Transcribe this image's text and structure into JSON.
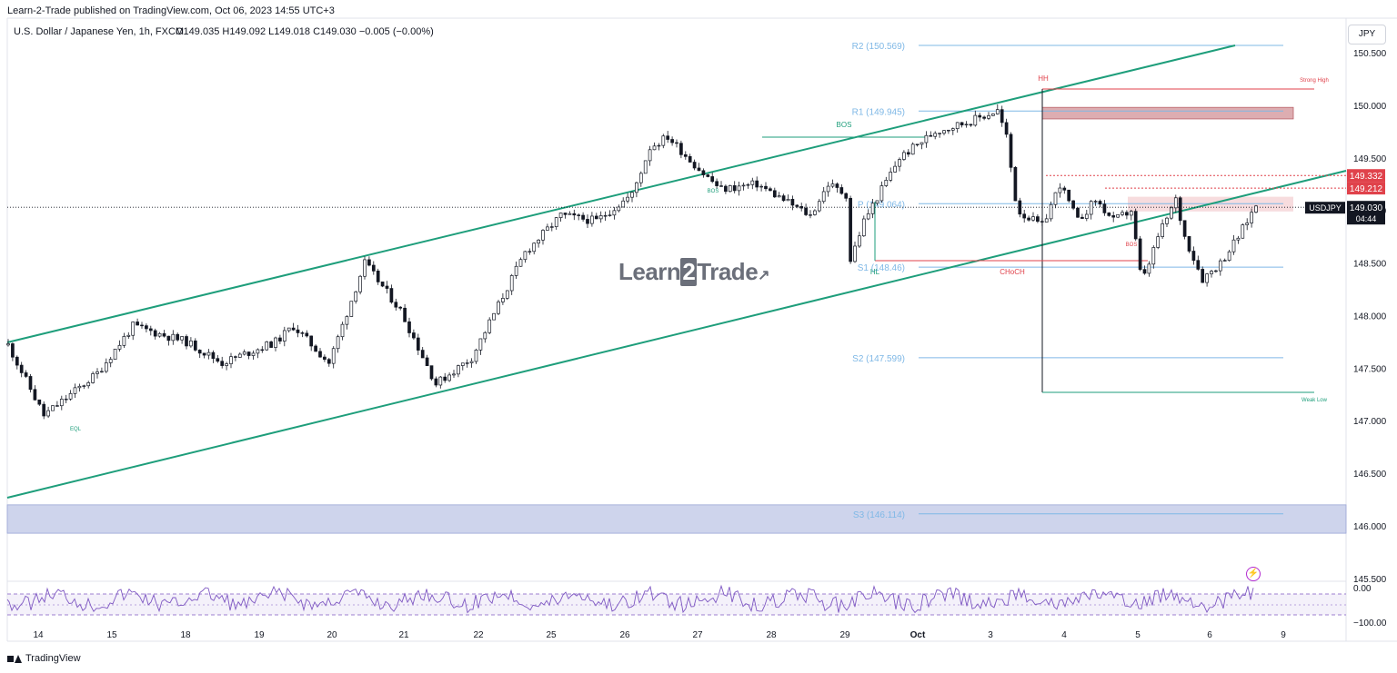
{
  "header": {
    "published": "Learn-2-Trade published on TradingView.com, Oct 06, 2023 14:55 UTC+3",
    "symbol": "U.S. Dollar / Japanese Yen, 1h, FXCM",
    "ohlc": "O149.035  H149.092  L149.018  C149.030  −0.005 (−0.00%)",
    "currency_button": "JPY"
  },
  "watermark": {
    "pre": "Learn",
    "two": "2",
    "post": "Trade"
  },
  "footer": {
    "brand": "TradingView"
  },
  "icons": {
    "tv_logo": "tradingview-logo-icon",
    "bolt": "lightning-icon",
    "watermark_arrow": "arrow-up-right-icon"
  },
  "colors": {
    "channel": "#1e9e7b",
    "pivot": "#7fb8e6",
    "red": "#e0424b",
    "support_zone": "#c5cde9",
    "resist_zone": "#d9a4a8",
    "rsi": "#7e57c2",
    "last_price_bg": "#131722"
  },
  "chart_data": {
    "type": "candlestick",
    "ylim": [
      145.3,
      150.85
    ],
    "y_ticks": [
      "150.500",
      "150.000",
      "149.500",
      "149.000",
      "148.500",
      "148.000",
      "147.500",
      "147.000",
      "146.500",
      "146.000",
      "145.500"
    ],
    "y_tick_values": [
      150.5,
      150.0,
      149.5,
      149.0,
      148.5,
      148.0,
      147.5,
      147.0,
      146.5,
      146.0,
      145.5
    ],
    "x_ticks": [
      "14",
      "15",
      "18",
      "19",
      "20",
      "21",
      "22",
      "25",
      "26",
      "27",
      "28",
      "29",
      "Oct",
      "3",
      "4",
      "5",
      "6",
      "9"
    ],
    "price_path": [
      [
        0,
        147.72
      ],
      [
        2,
        147.05
      ],
      [
        5,
        147.45
      ],
      [
        7,
        147.9
      ],
      [
        10,
        147.75
      ],
      [
        12,
        147.55
      ],
      [
        15,
        147.75
      ],
      [
        16,
        147.9
      ],
      [
        18,
        147.55
      ],
      [
        20,
        148.5
      ],
      [
        22,
        148.05
      ],
      [
        24,
        147.35
      ],
      [
        26,
        147.6
      ],
      [
        29,
        148.6
      ],
      [
        31,
        148.95
      ],
      [
        33,
        148.9
      ],
      [
        35,
        149.15
      ],
      [
        36,
        149.6
      ],
      [
        37,
        149.7
      ],
      [
        39,
        149.35
      ],
      [
        40,
        149.2
      ],
      [
        42,
        149.25
      ],
      [
        44,
        149.05
      ],
      [
        45,
        148.95
      ],
      [
        46,
        149.25
      ],
      [
        47,
        149.15
      ],
      [
        47.2,
        148.5
      ],
      [
        48,
        148.9
      ],
      [
        50,
        149.5
      ],
      [
        52,
        149.75
      ],
      [
        54,
        149.85
      ],
      [
        55.5,
        149.95
      ],
      [
        56,
        149.7
      ],
      [
        56.6,
        149.0
      ],
      [
        58,
        148.85
      ],
      [
        59,
        149.25
      ],
      [
        60,
        148.9
      ],
      [
        61,
        149.1
      ],
      [
        62,
        148.9
      ],
      [
        63,
        149.0
      ],
      [
        63.6,
        148.3
      ],
      [
        64.5,
        148.75
      ],
      [
        65.5,
        149.1
      ],
      [
        66,
        148.75
      ],
      [
        67,
        148.35
      ],
      [
        68,
        148.5
      ],
      [
        69,
        148.75
      ],
      [
        70,
        149.05
      ]
    ],
    "last_price": "149.030",
    "last_price_value": 149.03,
    "countdown": "04:44",
    "price_badges": [
      {
        "text": "149.332",
        "value": 149.332
      },
      {
        "text": "149.212",
        "value": 149.212
      }
    ],
    "last_symbol_label": "USDJPY",
    "pivots": [
      {
        "label": "R2 (150.569)",
        "value": 150.569
      },
      {
        "label": "R1 (149.945)",
        "value": 149.945
      },
      {
        "label": "P (149.064)",
        "value": 149.064
      },
      {
        "label": "S1 (148.46)",
        "value": 148.46
      },
      {
        "label": "S2 (147.599)",
        "value": 147.599
      },
      {
        "label": "S3 (146.114)",
        "value": 146.114
      }
    ],
    "annotations": [
      "HH",
      "Strong High",
      "BOS",
      "BOS",
      "HL",
      "CHoCH",
      "BOS",
      "EQL",
      "Weak Low"
    ],
    "rsi_labels": [
      "0.00",
      "−100.00"
    ],
    "support_zone": [
      145.93,
      146.2
    ],
    "resistance_zone": [
      149.87,
      149.98
    ]
  }
}
